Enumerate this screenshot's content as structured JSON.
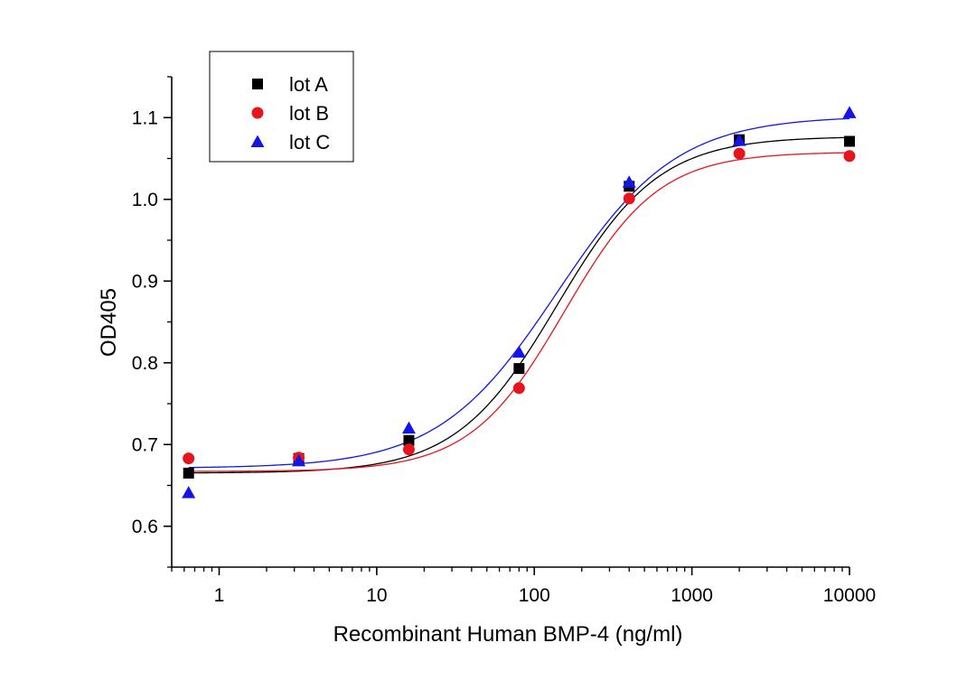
{
  "chart_data": {
    "type": "scatter",
    "title": "",
    "xlabel": "Recombinant Human BMP-4 (ng/ml)",
    "ylabel": "OD405",
    "xscale": "log",
    "xlim": [
      0.5,
      10000
    ],
    "ylim": [
      0.55,
      1.15
    ],
    "x_ticks": [
      {
        "value": 1,
        "label": "1"
      },
      {
        "value": 10,
        "label": "10"
      },
      {
        "value": 100,
        "label": "100"
      },
      {
        "value": 1000,
        "label": "1000"
      },
      {
        "value": 10000,
        "label": "10000"
      }
    ],
    "y_ticks": [
      {
        "value": 0.6,
        "label": "0.6"
      },
      {
        "value": 0.7,
        "label": "0.7"
      },
      {
        "value": 0.8,
        "label": "0.8"
      },
      {
        "value": 0.9,
        "label": "0.9"
      },
      {
        "value": 1.0,
        "label": "1.0"
      },
      {
        "value": 1.1,
        "label": "1.1"
      }
    ],
    "legend_position": "top-left",
    "grid": false,
    "series": [
      {
        "name": "lot A",
        "color": "#000000",
        "marker": "square",
        "x": [
          0.64,
          3.2,
          16,
          80,
          400,
          2000,
          10000
        ],
        "y": [
          0.665,
          0.683,
          0.705,
          0.793,
          1.016,
          1.073,
          1.071
        ],
        "fit": {
          "bottom": 0.665,
          "top": 1.077,
          "ec50": 140,
          "hill": 1.35
        }
      },
      {
        "name": "lot B",
        "color": "#e8141b",
        "marker": "circle",
        "x": [
          0.64,
          3.2,
          16,
          80,
          400,
          2000,
          10000
        ],
        "y": [
          0.683,
          0.684,
          0.694,
          0.769,
          1.001,
          1.056,
          1.053
        ],
        "fit": {
          "bottom": 0.667,
          "top": 1.058,
          "ec50": 155,
          "hill": 1.45
        }
      },
      {
        "name": "lot C",
        "color": "#1414e8",
        "marker": "triangle",
        "x": [
          0.64,
          3.2,
          16,
          80,
          400,
          2000,
          10000
        ],
        "y": [
          0.641,
          0.68,
          0.72,
          0.813,
          1.021,
          1.072,
          1.106
        ],
        "fit": {
          "bottom": 0.671,
          "top": 1.102,
          "ec50": 140,
          "hill": 1.15
        }
      }
    ]
  }
}
